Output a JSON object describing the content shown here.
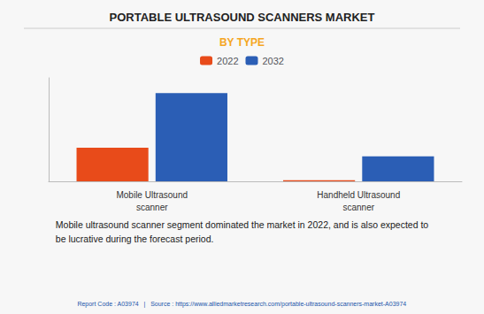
{
  "chart_data": {
    "type": "bar",
    "title": "PORTABLE ULTRASOUND SCANNERS MARKET",
    "subtitle": "BY TYPE",
    "categories": [
      "Mobile Ultrasound\nscanner",
      "Handheld Ultrasound\nscanner"
    ],
    "series": [
      {
        "name": "2022",
        "color": "#E84B1A",
        "values": [
          3.5,
          0.12
        ]
      },
      {
        "name": "2032",
        "color": "#2B5EB5",
        "values": [
          9.2,
          2.6
        ]
      }
    ],
    "ylim": [
      0,
      10.8
    ],
    "grid": false,
    "legend": "top",
    "tick_labels": "x",
    "annotations": [
      "Mobile ultrasound scanner segment dominated the market in 2022, and is also expected to\nbe lucrative during the forecast period.",
      "Report Code : A03974   |   Source : https://www.alliedmarketresearch.com/portable-ultrasound-scanners-market-A03974"
    ]
  }
}
